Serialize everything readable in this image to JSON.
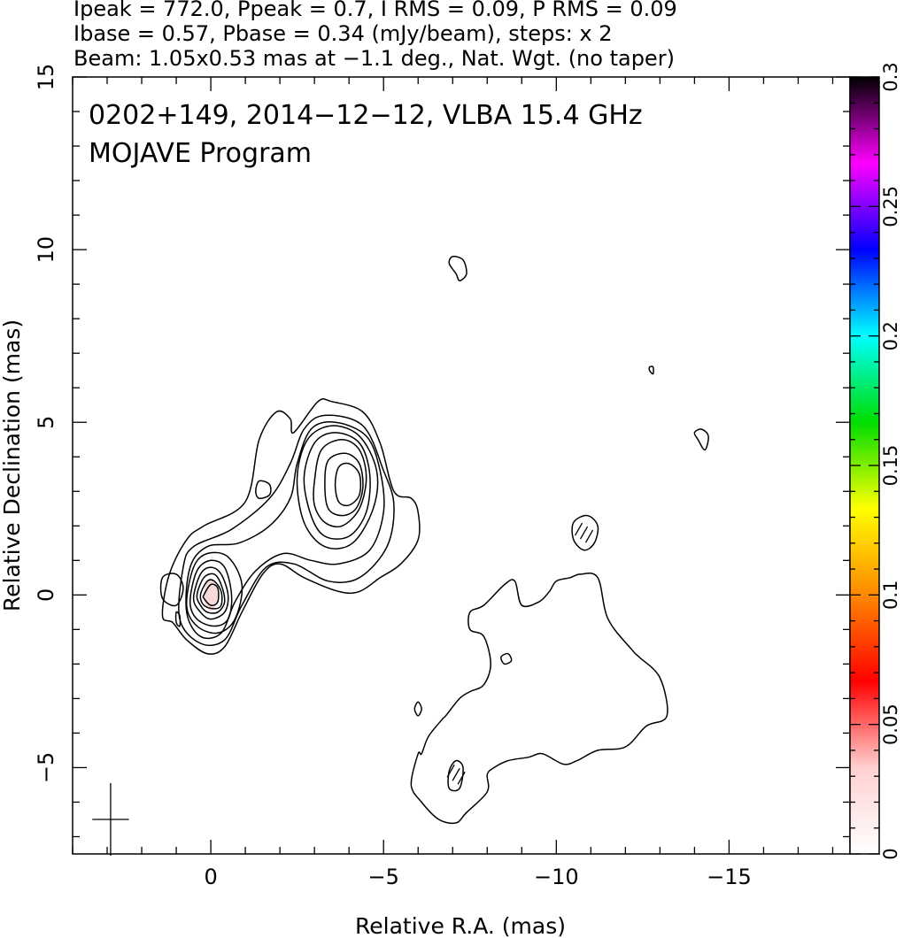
{
  "chart_data": {
    "type": "contour",
    "header_lines": [
      "Ipeak = 772.0, Ppeak = 0.7, I RMS = 0.09, P RMS = 0.09",
      "Ibase = 0.57, Pbase = 0.34 (mJy/beam), steps: x 2",
      "Beam: 1.05x0.53 mas at −1.1 deg., Nat. Wgt. (no taper)"
    ],
    "title": "0202+149, 2014−12−12, VLBA 15.4 GHz",
    "subtitle": "MOJAVE Program",
    "xlabel": "Relative R.A. (mas)",
    "ylabel": "Relative Declination (mas)",
    "xlim": [
      4,
      -18.5
    ],
    "ylim": [
      -7.5,
      15
    ],
    "x_ticks": [
      0,
      -5,
      -10,
      -15
    ],
    "x_tick_labels": [
      "0",
      "−5",
      "−10",
      "−15"
    ],
    "y_ticks": [
      -5,
      0,
      5,
      10,
      15
    ],
    "y_tick_labels": [
      "−5",
      "0",
      "5",
      "10",
      "15"
    ],
    "colorbar": {
      "range": [
        0,
        0.3
      ],
      "ticks": [
        0,
        0.05,
        0.1,
        0.15,
        0.2,
        0.25,
        0.3
      ],
      "tick_labels": [
        "0",
        "0.05",
        "0.1",
        "0.15",
        "0.2",
        "0.25",
        "0.3"
      ],
      "stops": [
        "#ffffff",
        "#ffd0d0",
        "#ff0000",
        "#ff8800",
        "#ffff00",
        "#00dd00",
        "#00ffff",
        "#0000ff",
        "#ff00ff",
        "#000000"
      ]
    },
    "core": {
      "x": 0,
      "y": 0,
      "color": "#f7dada"
    },
    "beam": {
      "major": 1.05,
      "minor": 0.53,
      "pa": -1.1,
      "center": [
        2.9,
        -6.5
      ]
    },
    "contours": [
      {
        "name": "core-jet-outer",
        "points": [
          [
            1.4,
            -0.6
          ],
          [
            1.2,
            0.6
          ],
          [
            0.7,
            1.6
          ],
          [
            0.2,
            2.0
          ],
          [
            -1,
            2.7
          ],
          [
            -1.4,
            4.5
          ],
          [
            -1.9,
            5.3
          ],
          [
            -2.3,
            5.1
          ],
          [
            -2.4,
            4.7
          ],
          [
            -3.1,
            5.6
          ],
          [
            -3.5,
            5.6
          ],
          [
            -4.4,
            5.3
          ],
          [
            -4.9,
            4.4
          ],
          [
            -5.3,
            3.0
          ],
          [
            -5.8,
            2.8
          ],
          [
            -6.0,
            2.4
          ],
          [
            -6.0,
            1.6
          ],
          [
            -5.5,
            0.9
          ],
          [
            -4.9,
            0.5
          ],
          [
            -4.3,
            0.1
          ],
          [
            -3.7,
            0.1
          ],
          [
            -2.7,
            0.5
          ],
          [
            -2.0,
            0.9
          ],
          [
            -1.5,
            0.6
          ],
          [
            -0.9,
            -0.5
          ],
          [
            -0.4,
            -1.5
          ],
          [
            0.1,
            -1.7
          ],
          [
            0.7,
            -1.3
          ],
          [
            1.1,
            -0.8
          ],
          [
            1.4,
            -0.6
          ]
        ]
      },
      {
        "name": "core-jet-2",
        "points": [
          [
            0.9,
            -0.7
          ],
          [
            0.8,
            0.8
          ],
          [
            0.5,
            1.4
          ],
          [
            -0.6,
            1.9
          ],
          [
            -1.7,
            2.8
          ],
          [
            -2.3,
            3.8
          ],
          [
            -2.7,
            4.8
          ],
          [
            -3.3,
            5.2
          ],
          [
            -4.4,
            4.9
          ],
          [
            -5.0,
            3.6
          ],
          [
            -5.3,
            2.6
          ],
          [
            -5.1,
            1.4
          ],
          [
            -4.3,
            0.5
          ],
          [
            -3.4,
            0.4
          ],
          [
            -2.4,
            0.9
          ],
          [
            -1.6,
            0.8
          ],
          [
            -0.9,
            -0.3
          ],
          [
            -0.4,
            -1.3
          ],
          [
            0.3,
            -1.4
          ],
          [
            0.9,
            -0.7
          ]
        ]
      },
      {
        "name": "core-jet-3",
        "points": [
          [
            0.7,
            -0.5
          ],
          [
            0.6,
            0.8
          ],
          [
            0.1,
            1.4
          ],
          [
            -0.8,
            1.5
          ],
          [
            -1.7,
            2.0
          ],
          [
            -2.3,
            2.8
          ],
          [
            -2.5,
            3.8
          ],
          [
            -2.9,
            4.8
          ],
          [
            -3.6,
            5.0
          ],
          [
            -4.5,
            4.6
          ],
          [
            -4.9,
            3.6
          ],
          [
            -5.0,
            2.4
          ],
          [
            -4.6,
            1.3
          ],
          [
            -3.7,
            0.9
          ],
          [
            -2.9,
            1.0
          ],
          [
            -2.1,
            1.2
          ],
          [
            -1.3,
            0.7
          ],
          [
            -0.7,
            -0.2
          ],
          [
            -0.3,
            -1.1
          ],
          [
            0.3,
            -1.2
          ],
          [
            0.7,
            -0.5
          ]
        ]
      },
      {
        "name": "core-c4",
        "points": [
          [
            0.7,
            -0.3
          ],
          [
            0.5,
            0.8
          ],
          [
            0.1,
            1.2
          ],
          [
            -0.5,
            1.1
          ],
          [
            -0.9,
            0.3
          ],
          [
            -0.7,
            -0.7
          ],
          [
            -0.2,
            -1.1
          ],
          [
            0.4,
            -0.9
          ],
          [
            0.7,
            -0.3
          ]
        ]
      },
      {
        "name": "core-c5",
        "points": [
          [
            0.6,
            -0.2
          ],
          [
            0.4,
            0.7
          ],
          [
            0.0,
            1.0
          ],
          [
            -0.4,
            0.8
          ],
          [
            -0.6,
            0.0
          ],
          [
            -0.5,
            -0.7
          ],
          [
            -0.1,
            -0.9
          ],
          [
            0.4,
            -0.7
          ],
          [
            0.6,
            -0.2
          ]
        ]
      },
      {
        "name": "core-c6",
        "points": [
          [
            0.5,
            -0.1
          ],
          [
            0.3,
            0.6
          ],
          [
            0.0,
            0.8
          ],
          [
            -0.3,
            0.6
          ],
          [
            -0.5,
            0.0
          ],
          [
            -0.4,
            -0.5
          ],
          [
            0.0,
            -0.7
          ],
          [
            0.3,
            -0.5
          ],
          [
            0.5,
            -0.1
          ]
        ]
      },
      {
        "name": "core-c7",
        "points": [
          [
            0.4,
            0.0
          ],
          [
            0.2,
            0.5
          ],
          [
            -0.1,
            0.6
          ],
          [
            -0.3,
            0.3
          ],
          [
            -0.4,
            -0.2
          ],
          [
            -0.2,
            -0.5
          ],
          [
            0.1,
            -0.5
          ],
          [
            0.3,
            -0.3
          ],
          [
            0.4,
            0.0
          ]
        ]
      },
      {
        "name": "core-c8",
        "points": [
          [
            0.3,
            0.0
          ],
          [
            0.1,
            0.4
          ],
          [
            -0.1,
            0.4
          ],
          [
            -0.3,
            0.1
          ],
          [
            -0.3,
            -0.3
          ],
          [
            -0.1,
            -0.4
          ],
          [
            0.2,
            -0.3
          ],
          [
            0.3,
            0.0
          ]
        ]
      },
      {
        "name": "core-c9",
        "points": [
          [
            0.2,
            0.0
          ],
          [
            0.0,
            0.3
          ],
          [
            -0.2,
            0.2
          ],
          [
            -0.2,
            -0.2
          ],
          [
            0.0,
            -0.3
          ],
          [
            0.2,
            -0.1
          ],
          [
            0.2,
            0.0
          ]
        ]
      },
      {
        "name": "knot-c1",
        "points": [
          [
            -2.5,
            3.4
          ],
          [
            -2.8,
            4.5
          ],
          [
            -3.5,
            4.9
          ],
          [
            -4.3,
            4.6
          ],
          [
            -4.8,
            3.6
          ],
          [
            -4.7,
            2.5
          ],
          [
            -4.1,
            1.5
          ],
          [
            -3.3,
            1.4
          ],
          [
            -2.7,
            2.1
          ],
          [
            -2.5,
            3.4
          ]
        ]
      },
      {
        "name": "knot-c2",
        "points": [
          [
            -2.7,
            3.4
          ],
          [
            -3.0,
            4.4
          ],
          [
            -3.6,
            4.7
          ],
          [
            -4.3,
            4.4
          ],
          [
            -4.6,
            3.5
          ],
          [
            -4.5,
            2.4
          ],
          [
            -4.0,
            1.7
          ],
          [
            -3.3,
            1.7
          ],
          [
            -2.9,
            2.3
          ],
          [
            -2.7,
            3.4
          ]
        ]
      },
      {
        "name": "knot-c3",
        "points": [
          [
            -3.0,
            3.3
          ],
          [
            -3.2,
            4.2
          ],
          [
            -3.8,
            4.5
          ],
          [
            -4.3,
            4.2
          ],
          [
            -4.5,
            3.4
          ],
          [
            -4.3,
            2.5
          ],
          [
            -3.8,
            2.0
          ],
          [
            -3.3,
            2.1
          ],
          [
            -3.0,
            2.6
          ],
          [
            -3.0,
            3.3
          ]
        ]
      },
      {
        "name": "knot-c4",
        "points": [
          [
            -3.3,
            3.2
          ],
          [
            -3.4,
            3.9
          ],
          [
            -3.9,
            4.1
          ],
          [
            -4.3,
            3.8
          ],
          [
            -4.4,
            3.1
          ],
          [
            -4.2,
            2.5
          ],
          [
            -3.8,
            2.3
          ],
          [
            -3.4,
            2.5
          ],
          [
            -3.3,
            3.2
          ]
        ]
      },
      {
        "name": "knot-c5",
        "points": [
          [
            -3.6,
            3.2
          ],
          [
            -3.7,
            3.7
          ],
          [
            -4.0,
            3.8
          ],
          [
            -4.3,
            3.5
          ],
          [
            -4.3,
            2.9
          ],
          [
            -4.0,
            2.6
          ],
          [
            -3.7,
            2.7
          ],
          [
            -3.6,
            3.2
          ]
        ]
      },
      {
        "name": "gap-island",
        "points": [
          [
            -1.3,
            3.0
          ],
          [
            -1.4,
            3.3
          ],
          [
            -1.7,
            3.2
          ],
          [
            -1.7,
            2.9
          ],
          [
            -1.4,
            2.8
          ],
          [
            -1.3,
            3.0
          ]
        ]
      },
      {
        "name": "left-blob",
        "points": [
          [
            1.0,
            -0.3
          ],
          [
            1.4,
            -0.1
          ],
          [
            1.4,
            0.5
          ],
          [
            1.0,
            0.6
          ],
          [
            0.8,
            0.2
          ],
          [
            1.0,
            -0.3
          ]
        ]
      },
      {
        "name": "left-bump",
        "points": [
          [
            1.0,
            -0.5
          ],
          [
            1.0,
            -0.8
          ],
          [
            0.9,
            -0.9
          ],
          [
            0.9,
            -0.6
          ],
          [
            1.0,
            -0.5
          ]
        ]
      },
      {
        "name": "south-outer",
        "points": [
          [
            -6.0,
            -4.6
          ],
          [
            -5.8,
            -5.5
          ],
          [
            -6.1,
            -6.0
          ],
          [
            -6.6,
            -6.5
          ],
          [
            -7.1,
            -6.6
          ],
          [
            -7.4,
            -6.3
          ],
          [
            -8.0,
            -5.7
          ],
          [
            -8.0,
            -5.2
          ],
          [
            -8.2,
            -5.0
          ],
          [
            -8.6,
            -4.8
          ],
          [
            -9.2,
            -4.7
          ],
          [
            -9.6,
            -4.6
          ],
          [
            -10.2,
            -4.9
          ],
          [
            -10.6,
            -4.8
          ],
          [
            -11.2,
            -4.5
          ],
          [
            -12.0,
            -4.4
          ],
          [
            -12.6,
            -3.8
          ],
          [
            -13.2,
            -3.5
          ],
          [
            -13.0,
            -2.4
          ],
          [
            -12.4,
            -1.8
          ],
          [
            -12.2,
            -1.6
          ],
          [
            -11.5,
            -0.7
          ],
          [
            -11.2,
            0.5
          ],
          [
            -10.7,
            0.6
          ],
          [
            -10.4,
            0.5
          ],
          [
            -10.0,
            0.4
          ],
          [
            -9.8,
            0.1
          ],
          [
            -9.5,
            -0.2
          ],
          [
            -9.0,
            -0.3
          ],
          [
            -8.8,
            0.4
          ],
          [
            -8.5,
            0.3
          ],
          [
            -7.9,
            -0.3
          ],
          [
            -7.5,
            -0.5
          ],
          [
            -7.5,
            -1.0
          ],
          [
            -7.9,
            -1.2
          ],
          [
            -8.1,
            -2.0
          ],
          [
            -7.9,
            -2.6
          ],
          [
            -7.5,
            -2.8
          ],
          [
            -7.2,
            -3.0
          ],
          [
            -6.8,
            -3.5
          ],
          [
            -6.7,
            -3.6
          ],
          [
            -6.3,
            -4.1
          ],
          [
            -6.1,
            -4.6
          ],
          [
            -6.0,
            -4.6
          ]
        ]
      },
      {
        "name": "south-hatched",
        "points": [
          [
            -6.9,
            -5.1
          ],
          [
            -6.9,
            -5.6
          ],
          [
            -7.2,
            -5.6
          ],
          [
            -7.3,
            -5.0
          ],
          [
            -7.1,
            -4.8
          ],
          [
            -6.9,
            -5.1
          ]
        ]
      },
      {
        "name": "south-island",
        "points": [
          [
            -8.4,
            -1.8
          ],
          [
            -8.6,
            -1.7
          ],
          [
            -8.7,
            -1.9
          ],
          [
            -8.5,
            -2.0
          ],
          [
            -8.4,
            -1.8
          ]
        ]
      },
      {
        "name": "tiny-isle",
        "points": [
          [
            -5.9,
            -3.3
          ],
          [
            -6.0,
            -3.1
          ],
          [
            -6.1,
            -3.3
          ],
          [
            -6.0,
            -3.5
          ],
          [
            -5.9,
            -3.3
          ]
        ]
      },
      {
        "name": "mid-blob",
        "points": [
          [
            -10.5,
            2.1
          ],
          [
            -10.5,
            1.6
          ],
          [
            -10.8,
            1.3
          ],
          [
            -11.1,
            1.5
          ],
          [
            -11.2,
            2.0
          ],
          [
            -10.9,
            2.3
          ],
          [
            -10.5,
            2.1
          ]
        ]
      },
      {
        "name": "north-blob",
        "points": [
          [
            -7.1,
            9.3
          ],
          [
            -6.9,
            9.6
          ],
          [
            -7.0,
            9.8
          ],
          [
            -7.3,
            9.7
          ],
          [
            -7.4,
            9.3
          ],
          [
            -7.2,
            9.1
          ],
          [
            -7.1,
            9.3
          ]
        ]
      },
      {
        "name": "east-blob",
        "points": [
          [
            -14.1,
            4.5
          ],
          [
            -14.0,
            4.7
          ],
          [
            -14.2,
            4.8
          ],
          [
            -14.4,
            4.6
          ],
          [
            -14.3,
            4.2
          ],
          [
            -14.1,
            4.5
          ]
        ]
      },
      {
        "name": "far-isle",
        "points": [
          [
            -12.7,
            6.5
          ],
          [
            -12.7,
            6.6
          ],
          [
            -12.8,
            6.6
          ],
          [
            -12.8,
            6.4
          ],
          [
            -12.7,
            6.5
          ]
        ]
      }
    ]
  }
}
